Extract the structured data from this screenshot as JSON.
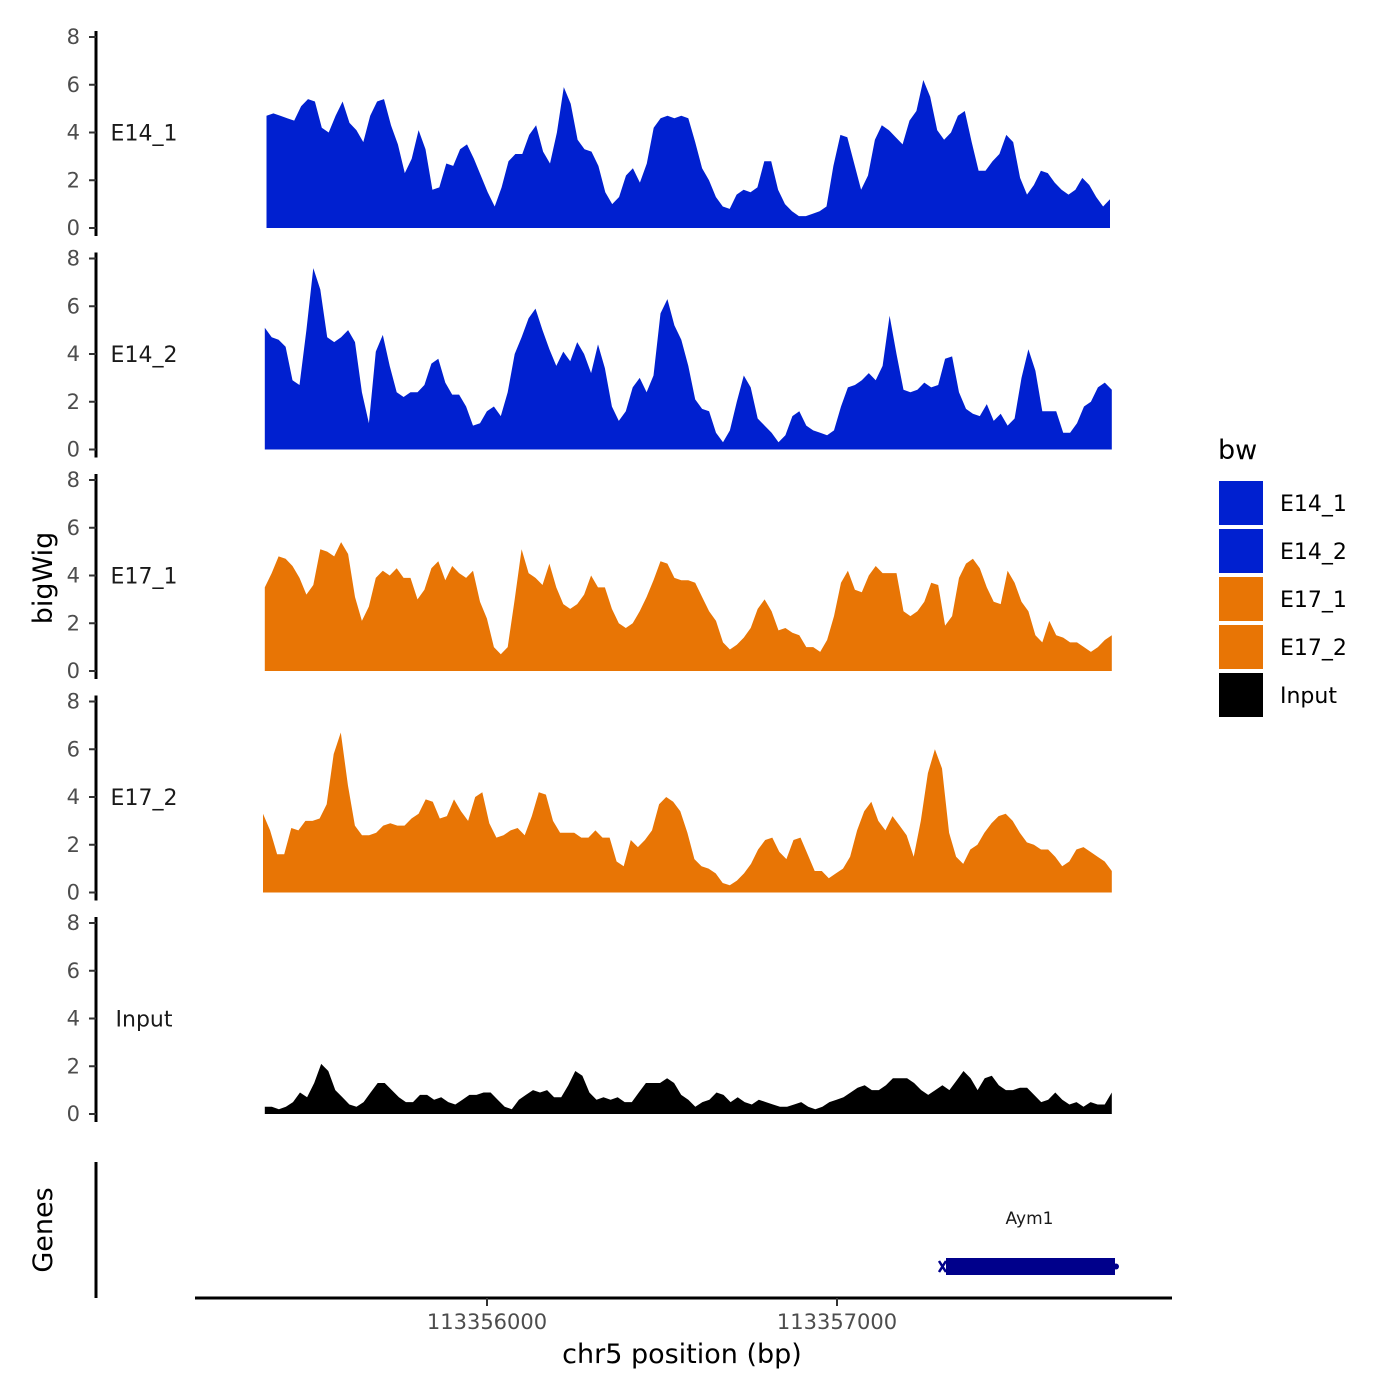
{
  "chart_data": {
    "type": "area",
    "ylabel": "bigWig",
    "xlabel": "chr5 position (bp)",
    "ylim": [
      0,
      8
    ],
    "yticks": [
      "0",
      "2",
      "4",
      "6",
      "8"
    ],
    "x_range": [
      113355360,
      113357785
    ],
    "x_ticks": [
      {
        "value": 113356000,
        "label": "113356000"
      },
      {
        "value": 113357000,
        "label": "113357000"
      }
    ],
    "genes_label": "Genes",
    "genes": [
      {
        "name": "Aym1",
        "start": 113357300,
        "end": 113357800,
        "color": "#00008b"
      }
    ],
    "legend": {
      "title": "bw",
      "items": [
        {
          "label": "E14_1",
          "color": "#0020d0"
        },
        {
          "label": "E14_2",
          "color": "#0020d0"
        },
        {
          "label": "E17_1",
          "color": "#e87505"
        },
        {
          "label": "E17_2",
          "color": "#e87505"
        },
        {
          "label": "Input",
          "color": "#000000"
        }
      ]
    },
    "series": [
      {
        "name": "E14_1",
        "color": "#0020d0",
        "x_start": 113355370,
        "x_end": 113357780,
        "values": [
          4.7,
          4.8,
          4.7,
          4.6,
          4.5,
          5.1,
          5.4,
          5.3,
          4.2,
          4.0,
          4.7,
          5.3,
          4.4,
          4.1,
          3.6,
          4.7,
          5.3,
          5.4,
          4.3,
          3.5,
          2.3,
          2.9,
          4.1,
          3.3,
          1.6,
          1.7,
          2.7,
          2.6,
          3.3,
          3.5,
          2.9,
          2.2,
          1.5,
          0.9,
          1.7,
          2.8,
          3.1,
          3.1,
          3.9,
          4.3,
          3.2,
          2.7,
          4.0,
          5.9,
          5.2,
          3.7,
          3.3,
          3.2,
          2.6,
          1.5,
          1.0,
          1.3,
          2.2,
          2.5,
          1.9,
          2.7,
          4.2,
          4.6,
          4.7,
          4.6,
          4.7,
          4.6,
          3.6,
          2.5,
          2.0,
          1.3,
          0.9,
          0.8,
          1.4,
          1.6,
          1.5,
          1.7,
          2.8,
          2.8,
          1.6,
          1.0,
          0.7,
          0.5,
          0.5,
          0.6,
          0.7,
          0.9,
          2.6,
          3.9,
          3.8,
          2.7,
          1.6,
          2.2,
          3.7,
          4.3,
          4.1,
          3.8,
          3.5,
          4.5,
          4.9,
          6.2,
          5.5,
          4.1,
          3.7,
          4.0,
          4.7,
          4.9,
          3.6,
          2.4,
          2.4,
          2.8,
          3.1,
          3.9,
          3.6,
          2.1,
          1.4,
          1.8,
          2.4,
          2.3,
          1.9,
          1.6,
          1.4,
          1.6,
          2.1,
          1.8,
          1.3,
          0.9,
          1.2
        ]
      },
      {
        "name": "E14_2",
        "color": "#0020d0",
        "x_start": 113355365,
        "x_end": 113357785,
        "values": [
          5.1,
          4.7,
          4.6,
          4.3,
          2.9,
          2.7,
          5.0,
          7.6,
          6.7,
          4.7,
          4.5,
          4.7,
          5.0,
          4.5,
          2.4,
          1.1,
          4.1,
          4.8,
          3.5,
          2.4,
          2.2,
          2.4,
          2.4,
          2.7,
          3.6,
          3.8,
          2.8,
          2.3,
          2.3,
          1.8,
          1.0,
          1.1,
          1.6,
          1.8,
          1.4,
          2.4,
          4.0,
          4.7,
          5.5,
          5.9,
          5.0,
          4.2,
          3.5,
          4.1,
          3.7,
          4.5,
          4.0,
          3.2,
          4.4,
          3.4,
          1.8,
          1.2,
          1.6,
          2.6,
          3.0,
          2.4,
          3.1,
          5.7,
          6.3,
          5.2,
          4.6,
          3.5,
          2.1,
          1.7,
          1.6,
          0.7,
          0.3,
          0.8,
          2.0,
          3.1,
          2.6,
          1.3,
          1.0,
          0.7,
          0.3,
          0.6,
          1.4,
          1.6,
          1.0,
          0.8,
          0.7,
          0.6,
          0.8,
          1.8,
          2.6,
          2.7,
          2.9,
          3.2,
          2.9,
          3.5,
          5.6,
          4.0,
          2.5,
          2.4,
          2.5,
          2.8,
          2.6,
          2.7,
          3.8,
          3.9,
          2.4,
          1.7,
          1.5,
          1.4,
          1.9,
          1.2,
          1.5,
          1.0,
          1.3,
          3.0,
          4.2,
          3.3,
          1.6,
          1.6,
          1.6,
          0.7,
          0.7,
          1.1,
          1.8,
          2.0,
          2.6,
          2.8,
          2.5
        ]
      },
      {
        "name": "E17_1",
        "color": "#e87505",
        "x_start": 113355365,
        "x_end": 113357785,
        "values": [
          3.5,
          4.1,
          4.8,
          4.7,
          4.4,
          3.9,
          3.2,
          3.6,
          5.1,
          5.0,
          4.8,
          5.4,
          4.9,
          3.1,
          2.1,
          2.7,
          3.9,
          4.2,
          4.0,
          4.3,
          3.9,
          3.9,
          3.0,
          3.4,
          4.3,
          4.6,
          3.8,
          4.4,
          4.1,
          3.9,
          4.2,
          2.9,
          2.2,
          1.0,
          0.7,
          1.0,
          3.0,
          5.1,
          4.1,
          3.9,
          3.6,
          4.5,
          3.5,
          2.8,
          2.6,
          2.8,
          3.2,
          4.0,
          3.5,
          3.5,
          2.6,
          2.0,
          1.8,
          2.0,
          2.5,
          3.1,
          3.8,
          4.6,
          4.5,
          3.9,
          3.8,
          3.8,
          3.7,
          3.1,
          2.5,
          2.1,
          1.2,
          0.9,
          1.1,
          1.4,
          1.8,
          2.6,
          3.0,
          2.5,
          1.7,
          1.8,
          1.6,
          1.5,
          1.0,
          1.0,
          0.8,
          1.3,
          2.3,
          3.7,
          4.2,
          3.4,
          3.3,
          4.0,
          4.4,
          4.1,
          4.1,
          4.1,
          2.5,
          2.3,
          2.5,
          2.9,
          3.7,
          3.6,
          1.9,
          2.3,
          3.9,
          4.5,
          4.7,
          4.3,
          3.5,
          2.9,
          2.8,
          4.2,
          3.7,
          2.9,
          2.5,
          1.5,
          1.2,
          2.1,
          1.5,
          1.4,
          1.2,
          1.2,
          1.0,
          0.8,
          1.0,
          1.3,
          1.5
        ]
      },
      {
        "name": "E17_2",
        "color": "#e87505",
        "x_start": 113355360,
        "x_end": 113357785,
        "values": [
          3.3,
          2.6,
          1.6,
          1.6,
          2.7,
          2.6,
          3.0,
          3.0,
          3.1,
          3.7,
          5.8,
          6.7,
          4.5,
          2.8,
          2.4,
          2.4,
          2.5,
          2.8,
          2.9,
          2.8,
          2.8,
          3.1,
          3.3,
          3.9,
          3.8,
          3.1,
          3.2,
          3.9,
          3.4,
          3.0,
          4.0,
          4.2,
          2.9,
          2.3,
          2.4,
          2.6,
          2.7,
          2.4,
          3.2,
          4.2,
          4.1,
          3.0,
          2.5,
          2.5,
          2.5,
          2.3,
          2.3,
          2.6,
          2.3,
          2.3,
          1.3,
          1.1,
          2.2,
          1.9,
          2.2,
          2.6,
          3.7,
          4.0,
          3.8,
          3.4,
          2.5,
          1.4,
          1.1,
          1.0,
          0.8,
          0.4,
          0.3,
          0.5,
          0.8,
          1.2,
          1.8,
          2.2,
          2.3,
          1.7,
          1.4,
          2.2,
          2.3,
          1.6,
          0.9,
          0.9,
          0.6,
          0.8,
          1.0,
          1.5,
          2.6,
          3.4,
          3.8,
          3.0,
          2.6,
          3.2,
          2.8,
          2.4,
          1.5,
          3.0,
          5.0,
          6.0,
          5.2,
          2.5,
          1.5,
          1.2,
          1.8,
          2.0,
          2.5,
          2.9,
          3.2,
          3.3,
          3.0,
          2.5,
          2.1,
          2.0,
          1.8,
          1.8,
          1.5,
          1.1,
          1.3,
          1.8,
          1.9,
          1.7,
          1.5,
          1.3,
          0.9
        ]
      },
      {
        "name": "Input",
        "color": "#000000",
        "x_start": 113355365,
        "x_end": 113357785,
        "values": [
          0.3,
          0.3,
          0.2,
          0.3,
          0.5,
          0.9,
          0.7,
          1.3,
          2.1,
          1.8,
          1.0,
          0.7,
          0.4,
          0.3,
          0.5,
          0.9,
          1.3,
          1.3,
          1.0,
          0.7,
          0.5,
          0.5,
          0.8,
          0.8,
          0.6,
          0.7,
          0.5,
          0.4,
          0.6,
          0.8,
          0.8,
          0.9,
          0.9,
          0.6,
          0.3,
          0.2,
          0.6,
          0.8,
          1.0,
          0.9,
          1.0,
          0.7,
          0.7,
          1.2,
          1.8,
          1.6,
          0.9,
          0.6,
          0.7,
          0.6,
          0.7,
          0.5,
          0.5,
          0.9,
          1.3,
          1.3,
          1.3,
          1.5,
          1.3,
          0.8,
          0.6,
          0.3,
          0.5,
          0.6,
          0.9,
          0.8,
          0.5,
          0.7,
          0.5,
          0.4,
          0.6,
          0.5,
          0.4,
          0.3,
          0.3,
          0.4,
          0.5,
          0.3,
          0.2,
          0.3,
          0.5,
          0.6,
          0.7,
          0.9,
          1.1,
          1.2,
          1.0,
          1.0,
          1.2,
          1.5,
          1.5,
          1.5,
          1.3,
          1.0,
          0.8,
          1.0,
          1.2,
          1.0,
          1.4,
          1.8,
          1.5,
          1.0,
          1.5,
          1.6,
          1.2,
          1.0,
          1.0,
          1.1,
          1.1,
          0.8,
          0.5,
          0.6,
          0.9,
          0.6,
          0.4,
          0.5,
          0.3,
          0.5,
          0.4,
          0.4,
          0.9
        ]
      }
    ]
  }
}
